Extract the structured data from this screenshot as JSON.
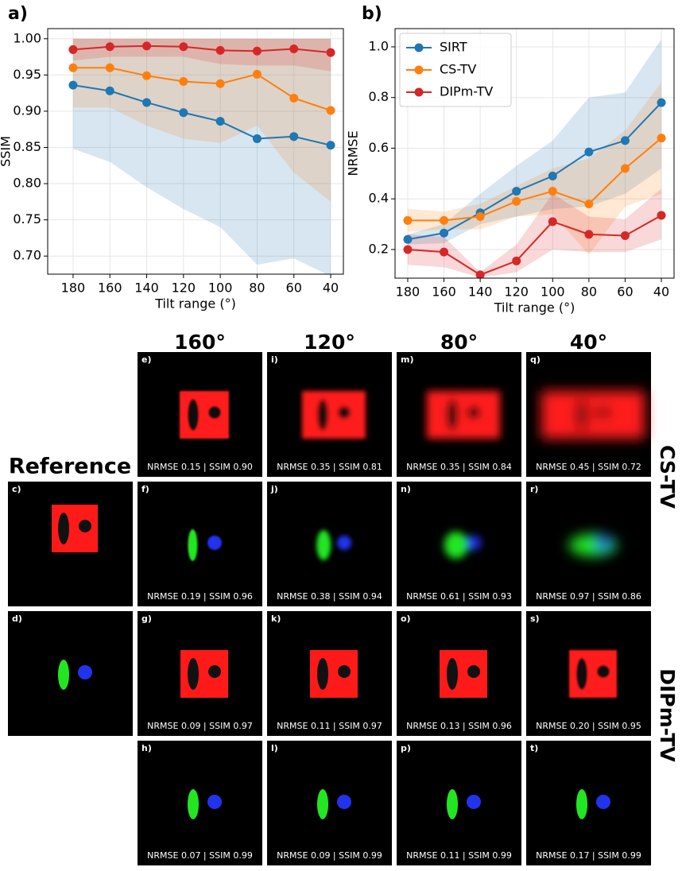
{
  "chart_data": [
    {
      "type": "line",
      "panel_label": "a)",
      "xlabel": "Tilt range (°)",
      "ylabel": "SSIM",
      "x": [
        180,
        160,
        140,
        120,
        100,
        80,
        60,
        40
      ],
      "xlim": [
        193.8,
        33.1
      ],
      "xticks": [
        180,
        160,
        140,
        120,
        100,
        80,
        60,
        40
      ],
      "ylim": [
        0.675,
        1.014
      ],
      "yticks": [
        {
          "value": 0.7,
          "label": "0.70"
        },
        {
          "value": 0.75,
          "label": "0.75"
        },
        {
          "value": 0.8,
          "label": "0.80"
        },
        {
          "value": 0.85,
          "label": "0.85"
        },
        {
          "value": 0.9,
          "label": "0.90"
        },
        {
          "value": 0.95,
          "label": "0.95"
        },
        {
          "value": 1.0,
          "label": "1.00"
        }
      ],
      "grid": true,
      "series": [
        {
          "color": "#1f77b4",
          "values": [
            0.936,
            0.928,
            0.912,
            0.898,
            0.886,
            0.862,
            0.865,
            0.853
          ],
          "lower": [
            0.848,
            0.83,
            0.795,
            0.765,
            0.74,
            0.688,
            0.697,
            0.672
          ],
          "upper": [
            1.0,
            1.0,
            1.0,
            1.0,
            1.0,
            1.0,
            1.0,
            1.0
          ]
        },
        {
          "color": "#ff7f0e",
          "values": [
            0.96,
            0.96,
            0.949,
            0.941,
            0.938,
            0.951,
            0.918,
            0.901
          ],
          "lower": [
            0.905,
            0.905,
            0.88,
            0.862,
            0.856,
            0.88,
            0.815,
            0.775
          ],
          "upper": [
            1.0,
            1.0,
            1.0,
            1.0,
            1.0,
            1.0,
            1.0,
            1.0
          ]
        },
        {
          "color": "#d62728",
          "values": [
            0.985,
            0.989,
            0.99,
            0.989,
            0.984,
            0.983,
            0.986,
            0.981
          ],
          "lower": [
            0.97,
            0.975,
            0.975,
            0.975,
            0.965,
            0.963,
            0.963,
            0.955
          ],
          "upper": [
            1.0,
            1.0,
            1.0,
            1.0,
            1.0,
            1.0,
            1.0,
            1.0
          ]
        }
      ]
    },
    {
      "type": "line",
      "panel_label": "b)",
      "xlabel": "Tilt range (°)",
      "ylabel": "NRMSE",
      "x": [
        180,
        160,
        140,
        120,
        100,
        80,
        60,
        40
      ],
      "xlim": [
        187,
        33
      ],
      "xticks": [
        180,
        160,
        140,
        120,
        100,
        80,
        60,
        40
      ],
      "ylim": [
        0.087,
        1.072
      ],
      "yticks": [
        0.2,
        0.4,
        0.6,
        0.8,
        {
          "value": 1.0,
          "label": "1.0"
        }
      ],
      "grid": true,
      "legend": "upper left",
      "series": [
        {
          "name": "SIRT",
          "color": "#1f77b4",
          "values": [
            0.24,
            0.265,
            0.345,
            0.43,
            0.49,
            0.585,
            0.63,
            0.78
          ],
          "lower": [
            0.22,
            0.225,
            0.3,
            0.33,
            0.36,
            0.37,
            0.42,
            0.52
          ],
          "upper": [
            0.26,
            0.3,
            0.42,
            0.53,
            0.63,
            0.8,
            0.82,
            1.03
          ]
        },
        {
          "name": "CS-TV",
          "color": "#ff7f0e",
          "values": [
            0.315,
            0.315,
            0.33,
            0.39,
            0.43,
            0.38,
            0.52,
            0.64
          ],
          "lower": [
            0.27,
            0.28,
            0.28,
            0.33,
            0.34,
            0.18,
            0.37,
            0.42
          ],
          "upper": [
            0.36,
            0.35,
            0.38,
            0.45,
            0.52,
            0.56,
            0.67,
            0.86
          ]
        },
        {
          "name": "DIPm-TV",
          "color": "#d62728",
          "values": [
            0.2,
            0.19,
            0.1,
            0.155,
            0.31,
            0.26,
            0.255,
            0.335
          ],
          "lower": [
            0.14,
            0.13,
            0.09,
            0.11,
            0.2,
            0.19,
            0.19,
            0.24
          ],
          "upper": [
            0.26,
            0.25,
            0.11,
            0.22,
            0.42,
            0.33,
            0.32,
            0.44
          ]
        }
      ]
    }
  ],
  "panels": {
    "columns": [
      "160°",
      "120°",
      "80°",
      "40°"
    ],
    "reference": {
      "title": "Reference",
      "images": [
        {
          "label": "c)"
        },
        {
          "label": "d)"
        }
      ]
    },
    "row_labels": [
      "CS-TV",
      "DIPm-TV"
    ],
    "rows": [
      [
        {
          "label": "e)",
          "caption": "NRMSE 0.15 | SSIM 0.90"
        },
        {
          "label": "i)",
          "caption": "NRMSE 0.35 | SSIM 0.81"
        },
        {
          "label": "m)",
          "caption": "NRMSE 0.35 | SSIM 0.84"
        },
        {
          "label": "q)",
          "caption": "NRMSE 0.45 | SSIM 0.72"
        }
      ],
      [
        {
          "label": "f)",
          "caption": "NRMSE 0.19 | SSIM 0.96"
        },
        {
          "label": "j)",
          "caption": "NRMSE 0.38 | SSIM 0.94"
        },
        {
          "label": "n)",
          "caption": "NRMSE 0.61 | SSIM 0.93"
        },
        {
          "label": "r)",
          "caption": "NRMSE 0.97 | SSIM 0.86"
        }
      ],
      [
        {
          "label": "g)",
          "caption": "NRMSE 0.09 | SSIM 0.97"
        },
        {
          "label": "k)",
          "caption": "NRMSE 0.11 | SSIM 0.97"
        },
        {
          "label": "o)",
          "caption": "NRMSE 0.13 | SSIM 0.96"
        },
        {
          "label": "s)",
          "caption": "NRMSE 0.20 | SSIM 0.95"
        }
      ],
      [
        {
          "label": "h)",
          "caption": "NRMSE 0.07 | SSIM 0.99"
        },
        {
          "label": "l)",
          "caption": "NRMSE 0.09 | SSIM 0.99"
        },
        {
          "label": "p)",
          "caption": "NRMSE 0.11 | SSIM 0.99"
        },
        {
          "label": "t)",
          "caption": "NRMSE 0.17 | SSIM 0.99"
        }
      ]
    ]
  }
}
